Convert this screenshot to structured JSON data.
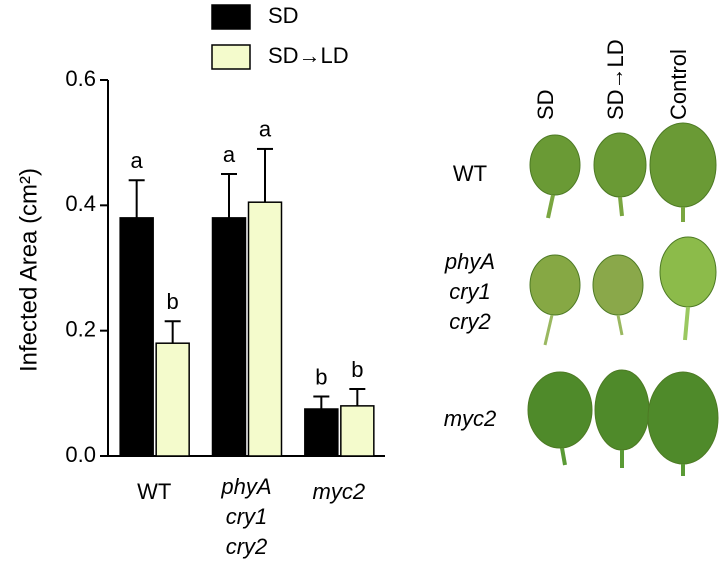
{
  "chart_data": {
    "type": "bar",
    "y_label": "Infected Area (cm²)",
    "categories": [
      [
        "WT"
      ],
      [
        "phyA",
        "cry1",
        "cry2"
      ],
      [
        "myc2"
      ]
    ],
    "category_italic": [
      false,
      true,
      true
    ],
    "series": [
      {
        "name": "SD",
        "color": "#000000",
        "values": [
          0.38,
          0.38,
          0.075
        ],
        "errors": [
          0.06,
          0.07,
          0.02
        ],
        "letters": [
          "a",
          "a",
          "b"
        ]
      },
      {
        "name": "SD→LD",
        "color": "#f4fbcc",
        "values": [
          0.18,
          0.405,
          0.08
        ],
        "errors": [
          0.035,
          0.085,
          0.027
        ],
        "letters": [
          "b",
          "a",
          "b"
        ]
      }
    ],
    "ylim": [
      0,
      0.6
    ],
    "yticks": [
      {
        "value": 0,
        "label": "0.0"
      },
      0.2,
      0.4,
      0.6
    ]
  },
  "photo_panel": {
    "columns": [
      "SD",
      "SD→LD",
      "Control"
    ],
    "rows": [
      [
        "WT"
      ],
      [
        "phyA",
        "cry1",
        "cry2"
      ],
      [
        "myc2"
      ]
    ]
  }
}
